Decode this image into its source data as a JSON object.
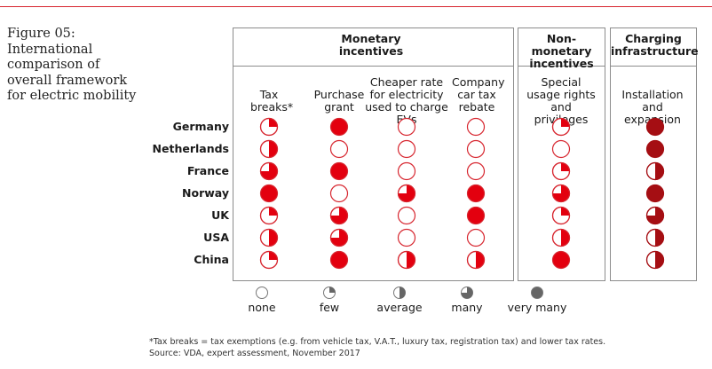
{
  "figure_title": "Figure 05: International comparison of overall framework for electric mobility",
  "groups": [
    {
      "title": "Monetary incentives"
    },
    {
      "title": "Non-monetary incentives"
    },
    {
      "title": "Charging infrastructure"
    }
  ],
  "colors": {
    "red": "#e3000f",
    "dark_red": "#a50e13",
    "gray_fill": "#666666",
    "outline_red": "#d7262f",
    "outline_dark": "#a50e13",
    "outline_gray": "#777777",
    "frame": "#8c8c8c"
  },
  "chart_data": {
    "type": "table",
    "columns": [
      {
        "label": "Tax breaks*",
        "group": "Monetary incentives"
      },
      {
        "label": "Purchase grant",
        "group": "Monetary incentives"
      },
      {
        "label": "Cheaper rate for electricity used to charge EVs",
        "group": "Monetary incentives"
      },
      {
        "label": "Company car tax rebate",
        "group": "Monetary incentives"
      },
      {
        "label": "Special usage rights and privileges",
        "group": "Non-monetary incentives"
      },
      {
        "label": "Installation and expansion",
        "group": "Charging infrastructure"
      }
    ],
    "rows": [
      "Germany",
      "Netherlands",
      "France",
      "Norway",
      "UK",
      "USA",
      "China"
    ],
    "scale": [
      "none",
      "few",
      "average",
      "many",
      "very many"
    ],
    "values": [
      [
        1,
        4,
        0,
        0,
        1,
        4
      ],
      [
        2,
        0,
        0,
        0,
        0,
        4
      ],
      [
        3,
        4,
        0,
        0,
        1,
        2
      ],
      [
        4,
        0,
        3,
        4,
        3,
        4
      ],
      [
        1,
        3,
        0,
        4,
        1,
        3
      ],
      [
        2,
        3,
        0,
        0,
        2,
        2
      ],
      [
        1,
        4,
        2,
        2,
        4,
        2
      ]
    ]
  },
  "legend": [
    {
      "label": "none",
      "level": 0
    },
    {
      "label": "few",
      "level": 1
    },
    {
      "label": "average",
      "level": 2
    },
    {
      "label": "many",
      "level": 3
    },
    {
      "label": "very many",
      "level": 4
    }
  ],
  "footnote": {
    "line1": "*Tax breaks = tax exemptions (e.g. from vehicle tax, V.A.T., luxury tax, registration tax) and lower tax rates.",
    "line2": "Source: VDA, expert assessment, November 2017"
  }
}
